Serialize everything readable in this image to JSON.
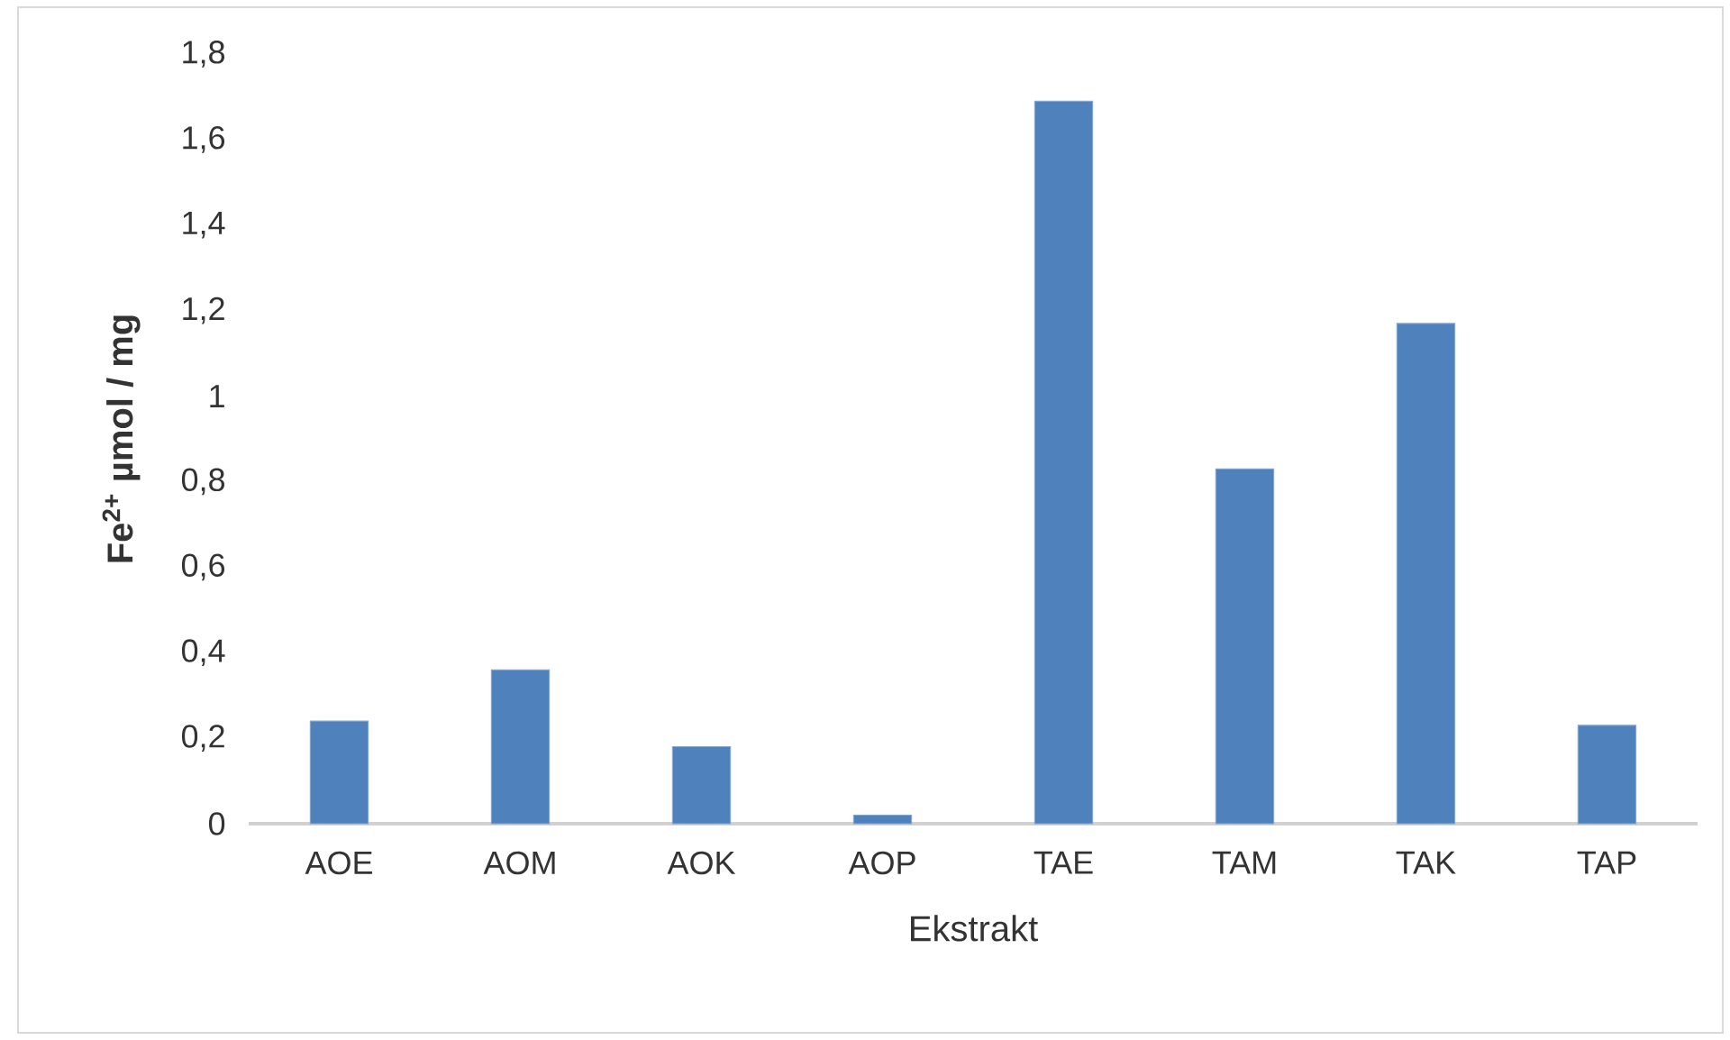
{
  "chart_data": {
    "type": "bar",
    "xlabel": "Ekstrakt",
    "ylabel": "Fe$^{2+}$ µmol / mg",
    "categories": [
      "AOE",
      "AOM",
      "AOK",
      "AOP",
      "TAE",
      "TAM",
      "TAK",
      "TAP"
    ],
    "values": [
      0.24,
      0.36,
      0.18,
      0.02,
      1.69,
      0.83,
      1.17,
      0.23
    ],
    "color": "#4f81bd",
    "ylim": [
      0,
      1.8
    ],
    "yticks": [
      0,
      {
        "value": 0.2,
        "label": "0,2"
      },
      {
        "value": 0.4,
        "label": "0,4"
      },
      {
        "value": 0.6,
        "label": "0,6"
      },
      {
        "value": 0.8,
        "label": "0,8"
      },
      1,
      {
        "value": 1.2,
        "label": "1,2"
      },
      {
        "value": 1.4,
        "label": "1,4"
      },
      {
        "value": 1.6,
        "label": "1,6"
      },
      {
        "value": 1.8,
        "label": "1,8"
      }
    ],
    "grid": false
  }
}
